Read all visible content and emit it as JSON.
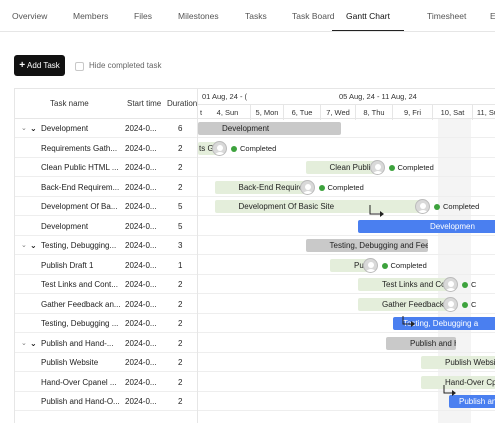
{
  "tabs": [
    {
      "label": "Overview",
      "active": false
    },
    {
      "label": "Members",
      "active": false
    },
    {
      "label": "Files",
      "active": false
    },
    {
      "label": "Milestones",
      "active": false
    },
    {
      "label": "Tasks",
      "active": false
    },
    {
      "label": "Task Board",
      "active": false
    },
    {
      "label": "Gantt Chart",
      "active": true
    },
    {
      "label": "Timesheet",
      "active": false
    },
    {
      "label": "E",
      "active": false
    }
  ],
  "toolbar": {
    "add_task_label": "Add Task",
    "hide_completed_label": "Hide completed task",
    "hide_completed_checked": false
  },
  "grid": {
    "columns": {
      "task_name": "Task name",
      "start_time": "Start time",
      "duration": "Duration"
    },
    "rows": [
      {
        "name": "Development",
        "start": "2024-0...",
        "duration": "6",
        "group": true
      },
      {
        "name": "Requirements Gath...",
        "start": "2024-0...",
        "duration": "2",
        "group": false
      },
      {
        "name": "Clean Public HTML ...",
        "start": "2024-0...",
        "duration": "2",
        "group": false
      },
      {
        "name": "Back-End Requirem...",
        "start": "2024-0...",
        "duration": "2",
        "group": false
      },
      {
        "name": "Development Of Ba...",
        "start": "2024-0...",
        "duration": "5",
        "group": false
      },
      {
        "name": "Development",
        "start": "2024-0...",
        "duration": "5",
        "group": false
      },
      {
        "name": "Testing, Debugging...",
        "start": "2024-0...",
        "duration": "3",
        "group": true
      },
      {
        "name": "Publish Draft 1",
        "start": "2024-0...",
        "duration": "1",
        "group": false
      },
      {
        "name": "Test Links and Cont...",
        "start": "2024-0...",
        "duration": "2",
        "group": false
      },
      {
        "name": "Gather Feedback an...",
        "start": "2024-0...",
        "duration": "2",
        "group": false
      },
      {
        "name": "Testing, Debugging ...",
        "start": "2024-0...",
        "duration": "2",
        "group": false
      },
      {
        "name": "Publish and Hand-...",
        "start": "2024-0...",
        "duration": "2",
        "group": true
      },
      {
        "name": "Publish Website",
        "start": "2024-0...",
        "duration": "2",
        "group": false
      },
      {
        "name": "Hand-Over Cpanel ...",
        "start": "2024-0...",
        "duration": "2",
        "group": false
      },
      {
        "name": "Publish and Hand-O...",
        "start": "2024-0...",
        "duration": "2",
        "group": false
      }
    ]
  },
  "timeline": {
    "weeks": [
      "01 Aug, 24 - (",
      "05 Aug, 24 - 11 Aug, 24"
    ],
    "days": [
      "t",
      "4, Sun",
      "5, Mon",
      "6, Tue",
      "7, Wed",
      "8, Thu",
      "9, Fri",
      "10, Sat",
      "11, Su"
    ],
    "bars": [
      {
        "row": 0,
        "style": "summary",
        "label": "Development",
        "start_day": 0,
        "end_day": 4.5
      },
      {
        "row": 1,
        "style": "done",
        "label": "ts Gather",
        "start_day": 0,
        "end_day": 1.0,
        "status": "Completed"
      },
      {
        "row": 2,
        "style": "done",
        "label": "Clean Public HTML Fi",
        "start_day": 3.5,
        "end_day": 5.5,
        "status": "Completed"
      },
      {
        "row": 3,
        "style": "done",
        "label": "Back-End Requireme",
        "start_day": 0.9,
        "end_day": 3.5,
        "status": "Completed"
      },
      {
        "row": 4,
        "style": "done",
        "label": "Development Of Basic Site",
        "start_day": 0.9,
        "end_day": 6.8,
        "status": "Completed"
      },
      {
        "row": 5,
        "style": "blue",
        "label": "Developmen",
        "start_day": 5.0,
        "end_day": 9.2
      },
      {
        "row": 6,
        "style": "summary",
        "label": "Testing, Debugging and Feedba",
        "start_day": 3.5,
        "end_day": 7.0
      },
      {
        "row": 7,
        "style": "done",
        "label": "Publish Dra",
        "start_day": 4.2,
        "end_day": 5.3,
        "status": "Completed"
      },
      {
        "row": 8,
        "style": "done",
        "label": "Test Links and Conta",
        "start_day": 5.0,
        "end_day": 7.6,
        "status": "C"
      },
      {
        "row": 9,
        "style": "done",
        "label": "Gather Feedback and",
        "start_day": 5.0,
        "end_day": 7.6,
        "status": "C"
      },
      {
        "row": 10,
        "style": "blue",
        "label": "Testing, Debugging a",
        "start_day": 6.0,
        "end_day": 9.2
      },
      {
        "row": 11,
        "style": "summary",
        "label": "Publish and Hand-Ov",
        "start_day": 5.8,
        "end_day": 7.8
      },
      {
        "row": 12,
        "style": "done",
        "label": "Publish Website",
        "start_day": 6.8,
        "end_day": 9.2
      },
      {
        "row": 13,
        "style": "done",
        "label": "Hand-Over Cpanel An",
        "start_day": 6.8,
        "end_day": 9.2
      },
      {
        "row": 14,
        "style": "blue",
        "label": "Publish and",
        "start_day": 7.6,
        "end_day": 9.2
      }
    ]
  }
}
